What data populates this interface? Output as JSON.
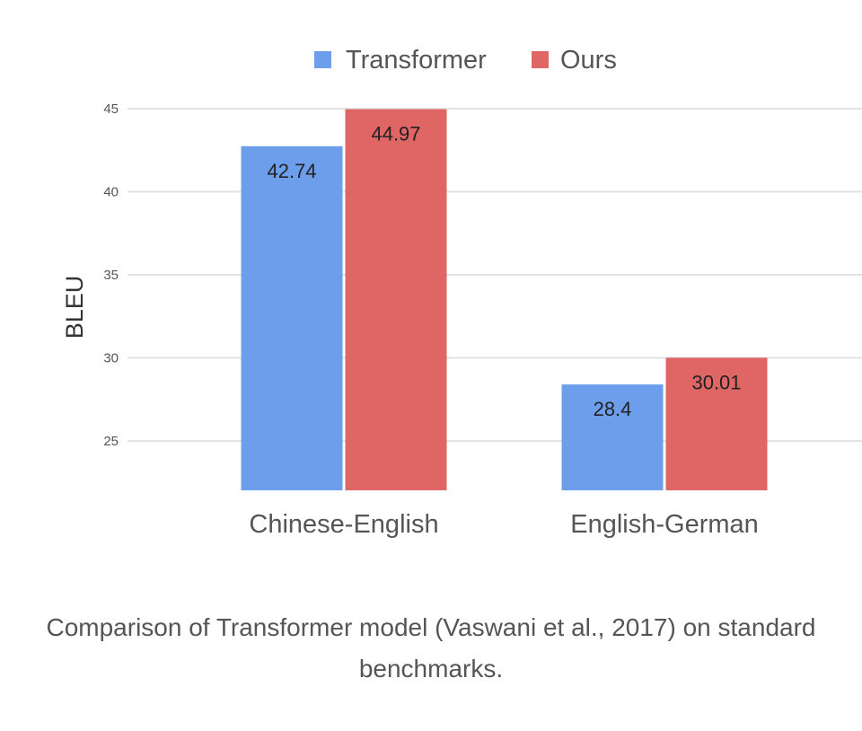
{
  "chart_data": {
    "type": "bar",
    "categories": [
      "Chinese-English",
      "English-German"
    ],
    "series": [
      {
        "name": "Transformer",
        "values": [
          42.74,
          28.4
        ],
        "labels": [
          "42.74",
          "28.4"
        ],
        "color": "#6d9eeb"
      },
      {
        "name": "Ours",
        "values": [
          44.97,
          30.01
        ],
        "labels": [
          "44.97",
          "30.01"
        ],
        "color": "#e06666"
      }
    ],
    "ylabel": "BLEU",
    "yticks": [
      25,
      30,
      35,
      40,
      45
    ],
    "ytick_labels": [
      "25",
      "30",
      "35",
      "40",
      "45"
    ],
    "ylim": [
      25,
      45
    ],
    "grid": true,
    "legend_position": "top-center"
  },
  "caption": "Comparison of Transformer model (Vaswani et al., 2017) on standard benchmarks."
}
